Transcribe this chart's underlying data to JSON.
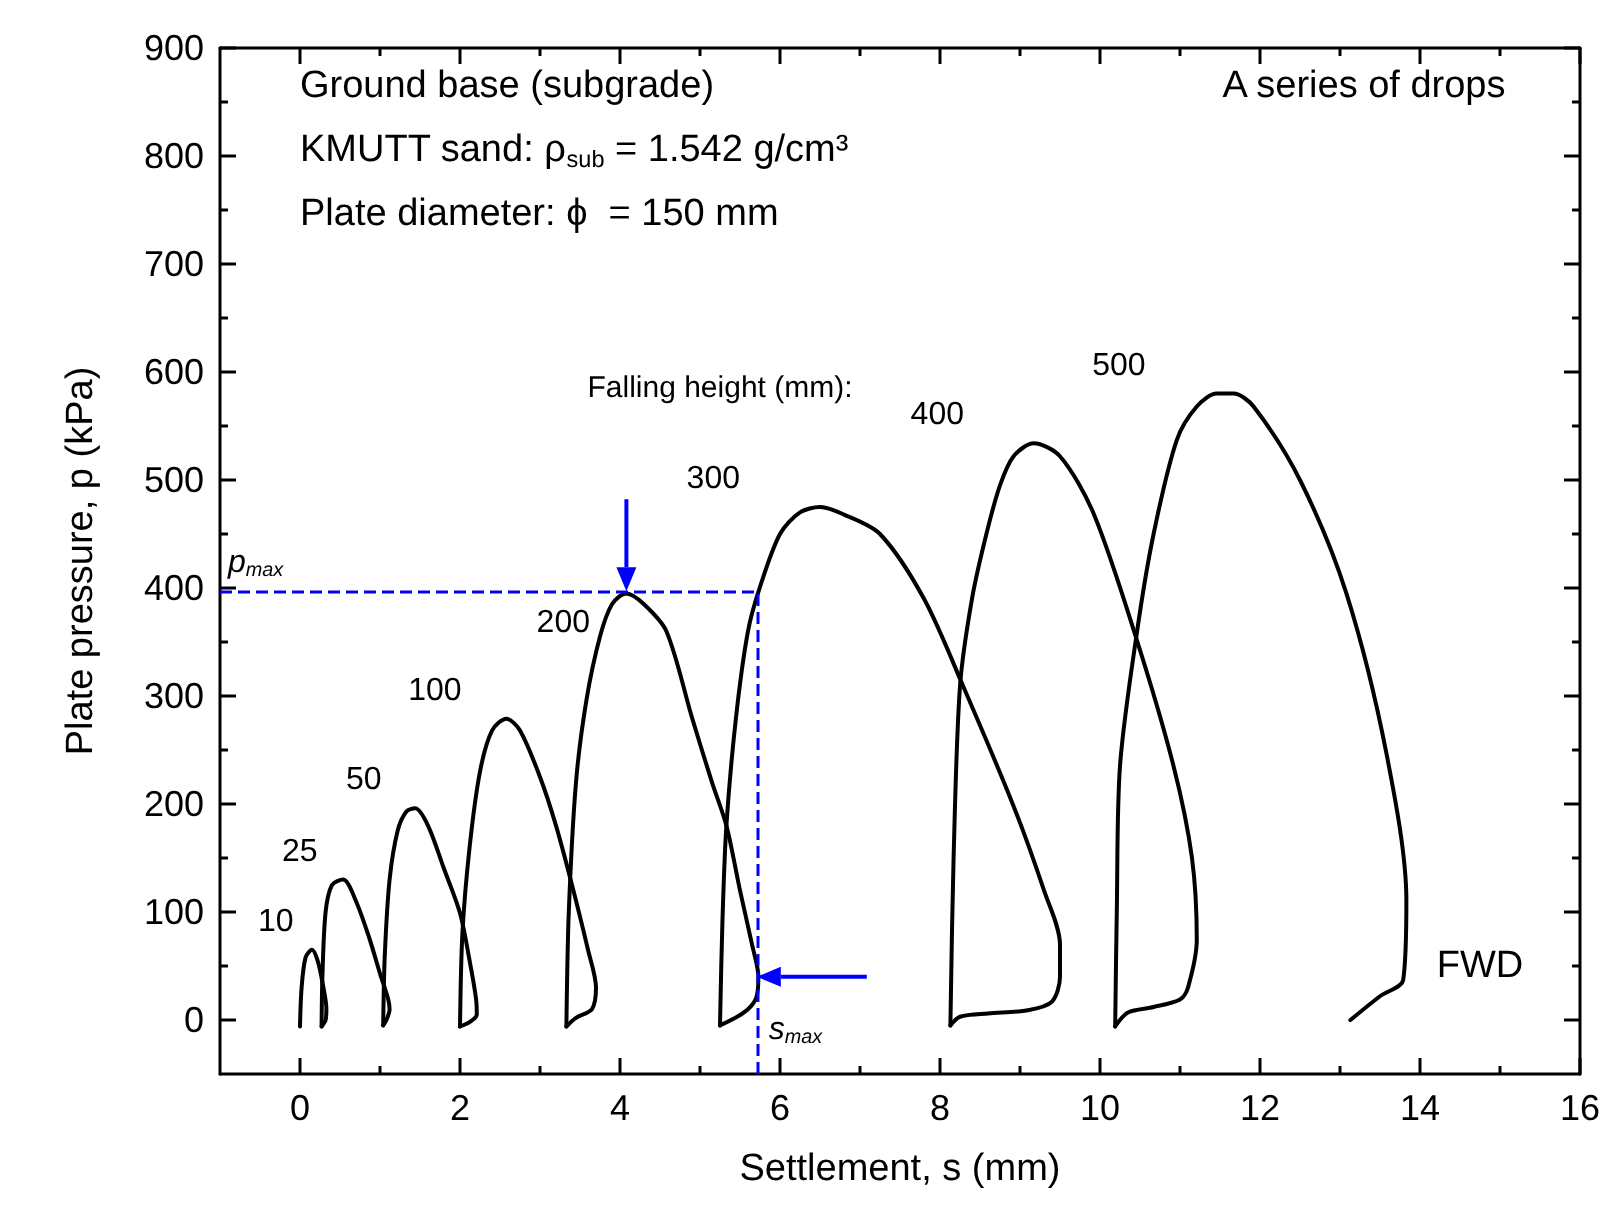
{
  "chart_data": {
    "type": "line",
    "xlabel": "Settlement, s (mm)",
    "ylabel": "Plate pressure, p (kPa)",
    "xlim": [
      -1,
      16
    ],
    "xticks": [
      0,
      {
        "value": 1,
        "label": null
      },
      2,
      {
        "value": 3,
        "label": null
      },
      4,
      {
        "value": 5,
        "label": null
      },
      6,
      {
        "value": 7,
        "label": null
      },
      8,
      {
        "value": 9,
        "label": null
      },
      10,
      {
        "value": 11,
        "label": null
      },
      12,
      {
        "value": 13,
        "label": null
      },
      14,
      {
        "value": 15,
        "label": null
      },
      16
    ],
    "ylim": [
      -50,
      900
    ],
    "yticks": [
      0,
      {
        "value": 50,
        "label": null
      },
      100,
      {
        "value": 150,
        "label": null
      },
      200,
      {
        "value": 250,
        "label": null
      },
      300,
      {
        "value": 350,
        "label": null
      },
      400,
      {
        "value": 450,
        "label": null
      },
      500,
      {
        "value": 550,
        "label": null
      },
      600,
      {
        "value": 650,
        "label": null
      },
      700,
      {
        "value": 750,
        "label": null
      },
      800,
      {
        "value": 850,
        "label": null
      },
      900
    ],
    "marker": "none",
    "series": [
      {
        "name": "10",
        "color": "#000000",
        "x": [
          0,
          0.02,
          0.07,
          0.15,
          0.22,
          0.28,
          0.33,
          0.32,
          0.27
        ],
        "values": [
          -6,
          30,
          58,
          65,
          55,
          35,
          10,
          0,
          -6
        ]
      },
      {
        "name": "25",
        "color": "#000000",
        "x": [
          0.27,
          0.28,
          0.32,
          0.4,
          0.54,
          0.7,
          0.87,
          1.0,
          1.1,
          1.12,
          1.08,
          1.04
        ],
        "values": [
          -6,
          40,
          100,
          125,
          130,
          110,
          75,
          43,
          20,
          10,
          0,
          -5
        ]
      },
      {
        "name": "50",
        "color": "#000000",
        "x": [
          1.04,
          1.06,
          1.12,
          1.22,
          1.33,
          1.44,
          1.6,
          1.8,
          2.0,
          2.12,
          2.2,
          2.21,
          2.12,
          2.0
        ],
        "values": [
          -5,
          60,
          130,
          175,
          193,
          196,
          180,
          140,
          99,
          55,
          20,
          5,
          -2,
          -6
        ]
      },
      {
        "name": "100",
        "color": "#000000",
        "x": [
          2.0,
          2.03,
          2.12,
          2.25,
          2.4,
          2.58,
          2.75,
          3.0,
          3.2,
          3.4,
          3.6,
          3.7,
          3.65,
          3.45,
          3.33
        ],
        "values": [
          -6,
          80,
          160,
          230,
          268,
          279,
          268,
          225,
          180,
          125,
          65,
          30,
          10,
          2,
          -6
        ]
      },
      {
        "name": "200",
        "color": "#000000",
        "x": [
          3.33,
          3.36,
          3.45,
          3.58,
          3.75,
          3.9,
          4.08,
          4.3,
          4.58,
          4.9,
          5.15,
          5.33,
          5.5,
          5.65,
          5.73,
          5.7,
          5.55,
          5.25
        ],
        "values": [
          -6,
          100,
          220,
          296,
          355,
          385,
          395,
          385,
          360,
          280,
          220,
          180,
          120,
          70,
          40,
          20,
          7,
          -5
        ]
      },
      {
        "name": "300",
        "color": "#000000",
        "x": [
          5.25,
          5.28,
          5.33,
          5.45,
          5.6,
          5.75,
          6.0,
          6.25,
          6.5,
          6.8,
          7.25,
          7.8,
          8.29,
          8.92,
          9.3,
          9.5,
          9.5,
          9.4,
          9.1,
          8.6,
          8.25,
          8.13
        ],
        "values": [
          -5,
          90,
          180,
          280,
          360,
          401,
          450,
          470,
          475,
          468,
          450,
          390,
          309,
          198,
          120,
          70,
          40,
          17,
          9,
          6,
          3,
          -5
        ]
      },
      {
        "name": "400",
        "color": "#000000",
        "x": [
          8.13,
          8.17,
          8.25,
          8.4,
          8.58,
          8.75,
          8.92,
          9.17,
          9.5,
          9.92,
          10.46,
          10.92,
          11.15,
          11.21,
          11.1,
          11.0,
          10.67,
          10.35,
          10.19
        ],
        "values": [
          -5,
          150,
          309,
          390,
          450,
          495,
          522,
          534,
          522,
          469,
          352,
          235,
          150,
          74,
          30,
          19,
          12,
          7,
          -6
        ]
      },
      {
        "name": "500",
        "color": "#000000",
        "x": [
          10.19,
          10.21,
          10.25,
          10.46,
          10.67,
          10.96,
          11.21,
          11.46,
          11.67,
          11.92,
          12.5,
          13.08,
          13.58,
          13.83,
          13.79,
          13.5,
          13.13
        ],
        "values": [
          -6,
          100,
          235,
          358,
          450,
          537,
          568,
          580,
          580,
          568,
          500,
          395,
          247,
          111,
          37,
          22,
          0
        ]
      }
    ],
    "ref_lines": [
      {
        "axis": "y",
        "value": 397,
        "label": "p$_{max}$",
        "color": "#0000ff",
        "line_style": "dashed"
      },
      {
        "axis": "x",
        "value": 5.71,
        "label": "s$_{max}$",
        "color": "#0000ff",
        "line_style": "dashed"
      }
    ],
    "annotations": [
      "Ground base (subgrade)",
      "KMUTT sand: ρ$_{sub}$ = 1.542 g/cm³",
      "Plate diameter: ϕ  = 150 mm",
      "A series of drops",
      "Falling height (mm):",
      "FWD"
    ]
  }
}
